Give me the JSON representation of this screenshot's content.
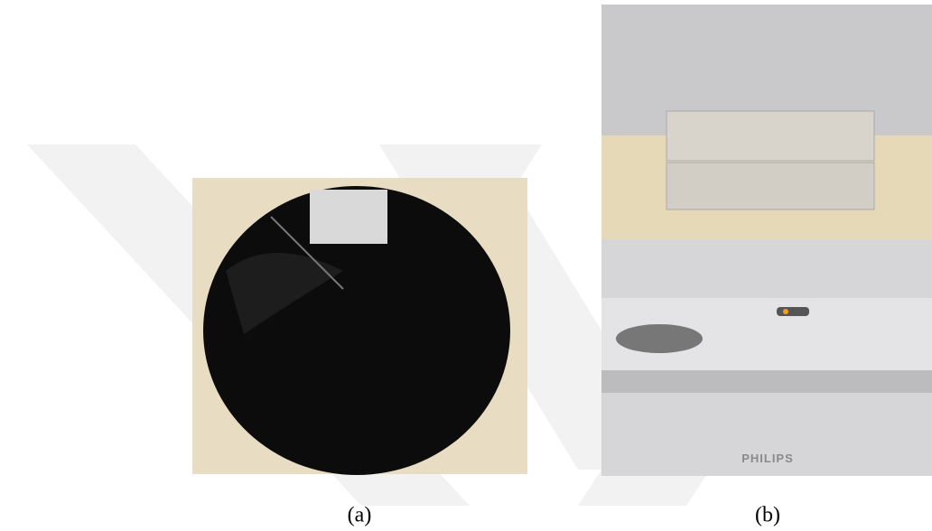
{
  "figure": {
    "panels": [
      {
        "label": "(a)"
      },
      {
        "label": "(b)",
        "device_brand": "PHILIPS"
      }
    ]
  }
}
